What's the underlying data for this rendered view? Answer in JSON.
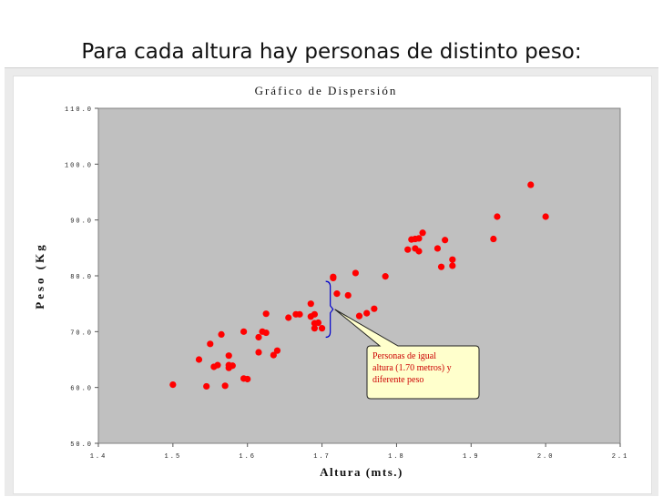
{
  "slide": {
    "title": "Para cada altura hay personas de distinto peso:"
  },
  "chart_data": {
    "type": "scatter",
    "title": "Gráfico de Dispersión",
    "xlabel": "Altura (mts.)",
    "ylabel": "Peso (Kg",
    "xlim": [
      1.4,
      2.1
    ],
    "ylim": [
      50,
      110
    ],
    "x_ticks": [
      "1.4",
      "1.5",
      "1.6",
      "1.7",
      "1.8",
      "1.9",
      "2.0",
      "2.1"
    ],
    "y_ticks": [
      "50.0",
      "60.0",
      "70.0",
      "80.0",
      "90.0",
      "100.0",
      "110.0"
    ],
    "grid": false,
    "point_color": "#ff0000",
    "plot_background": "#c0c0c0",
    "series": [
      {
        "x": [
          1.5,
          1.535,
          1.545,
          1.55,
          1.555,
          1.56,
          1.565,
          1.57,
          1.575,
          1.575,
          1.575,
          1.58,
          1.595,
          1.595,
          1.6,
          1.615,
          1.615,
          1.62,
          1.625,
          1.625,
          1.635,
          1.64,
          1.655,
          1.665,
          1.67,
          1.685,
          1.685,
          1.69,
          1.69,
          1.69,
          1.695,
          1.7,
          1.715,
          1.715,
          1.72,
          1.735,
          1.745,
          1.75,
          1.76,
          1.77,
          1.785,
          1.815,
          1.82,
          1.825,
          1.825,
          1.83,
          1.83,
          1.835,
          1.855,
          1.86,
          1.865,
          1.875,
          1.875,
          1.93,
          1.935,
          1.98,
          2.0
        ],
        "y": [
          60.5,
          65.0,
          60.2,
          67.8,
          63.7,
          64.0,
          69.5,
          60.3,
          65.7,
          64.0,
          63.5,
          63.9,
          61.6,
          70.0,
          61.5,
          66.3,
          69.0,
          70.0,
          73.2,
          69.8,
          65.8,
          66.6,
          72.5,
          73.1,
          73.1,
          75.0,
          72.7,
          70.6,
          71.5,
          73.1,
          71.6,
          70.6,
          79.6,
          79.8,
          76.8,
          76.5,
          80.5,
          72.8,
          73.3,
          74.1,
          79.9,
          84.7,
          86.5,
          86.6,
          84.9,
          86.7,
          84.4,
          87.7,
          84.9,
          81.6,
          86.4,
          82.9,
          81.8,
          86.6,
          90.6,
          96.3,
          90.6
        ]
      }
    ],
    "annotation": {
      "text_lines": [
        "Personas de igual",
        "altura (1.70 metros) y",
        "diferente peso"
      ],
      "text_color": "#cc0000",
      "box_fill": "#ffffcc",
      "bracket_color": "#0000cc",
      "x": 1.705,
      "y_range": [
        69.0,
        79.0
      ]
    }
  }
}
